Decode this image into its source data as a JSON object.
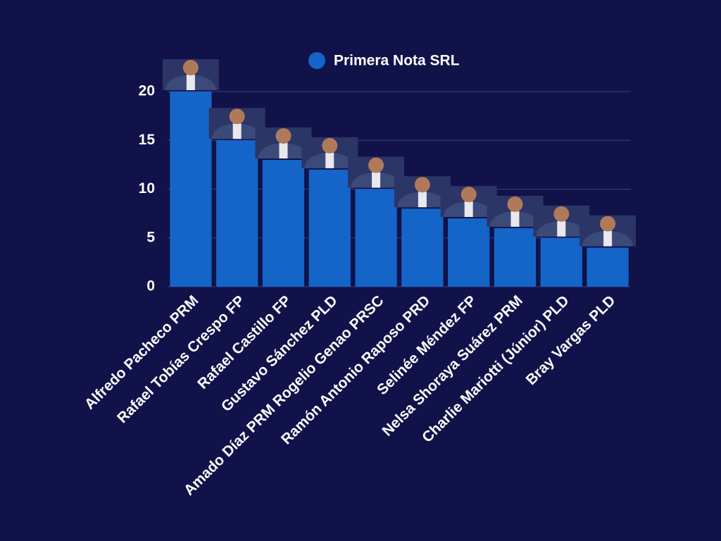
{
  "chart_data": {
    "type": "bar",
    "categories": [
      "Alfredo Pacheco PRM",
      "Rafael Tobías Crespo FP",
      "Rafael Castillo FP",
      "Gustavo Sánchez PLD",
      "Amado Díaz PRM Rogelio Genao PRSC",
      "Ramón Antonio Raposo PRD",
      "Selinée Méndez FP",
      "Nelsa Shoraya Suárez PRM",
      "Charlie Mariotti (Júnior) PLD",
      "Bray Vargas PLD"
    ],
    "series": [
      {
        "name": "Primera Nota SRL",
        "color": "#1565c8",
        "values": [
          20,
          15,
          13,
          12,
          10,
          8,
          7,
          6,
          5,
          4
        ]
      }
    ],
    "ylim": [
      0,
      20
    ],
    "yticks": [
      0,
      5,
      10,
      15,
      20
    ],
    "grid": true,
    "legend": "top"
  }
}
